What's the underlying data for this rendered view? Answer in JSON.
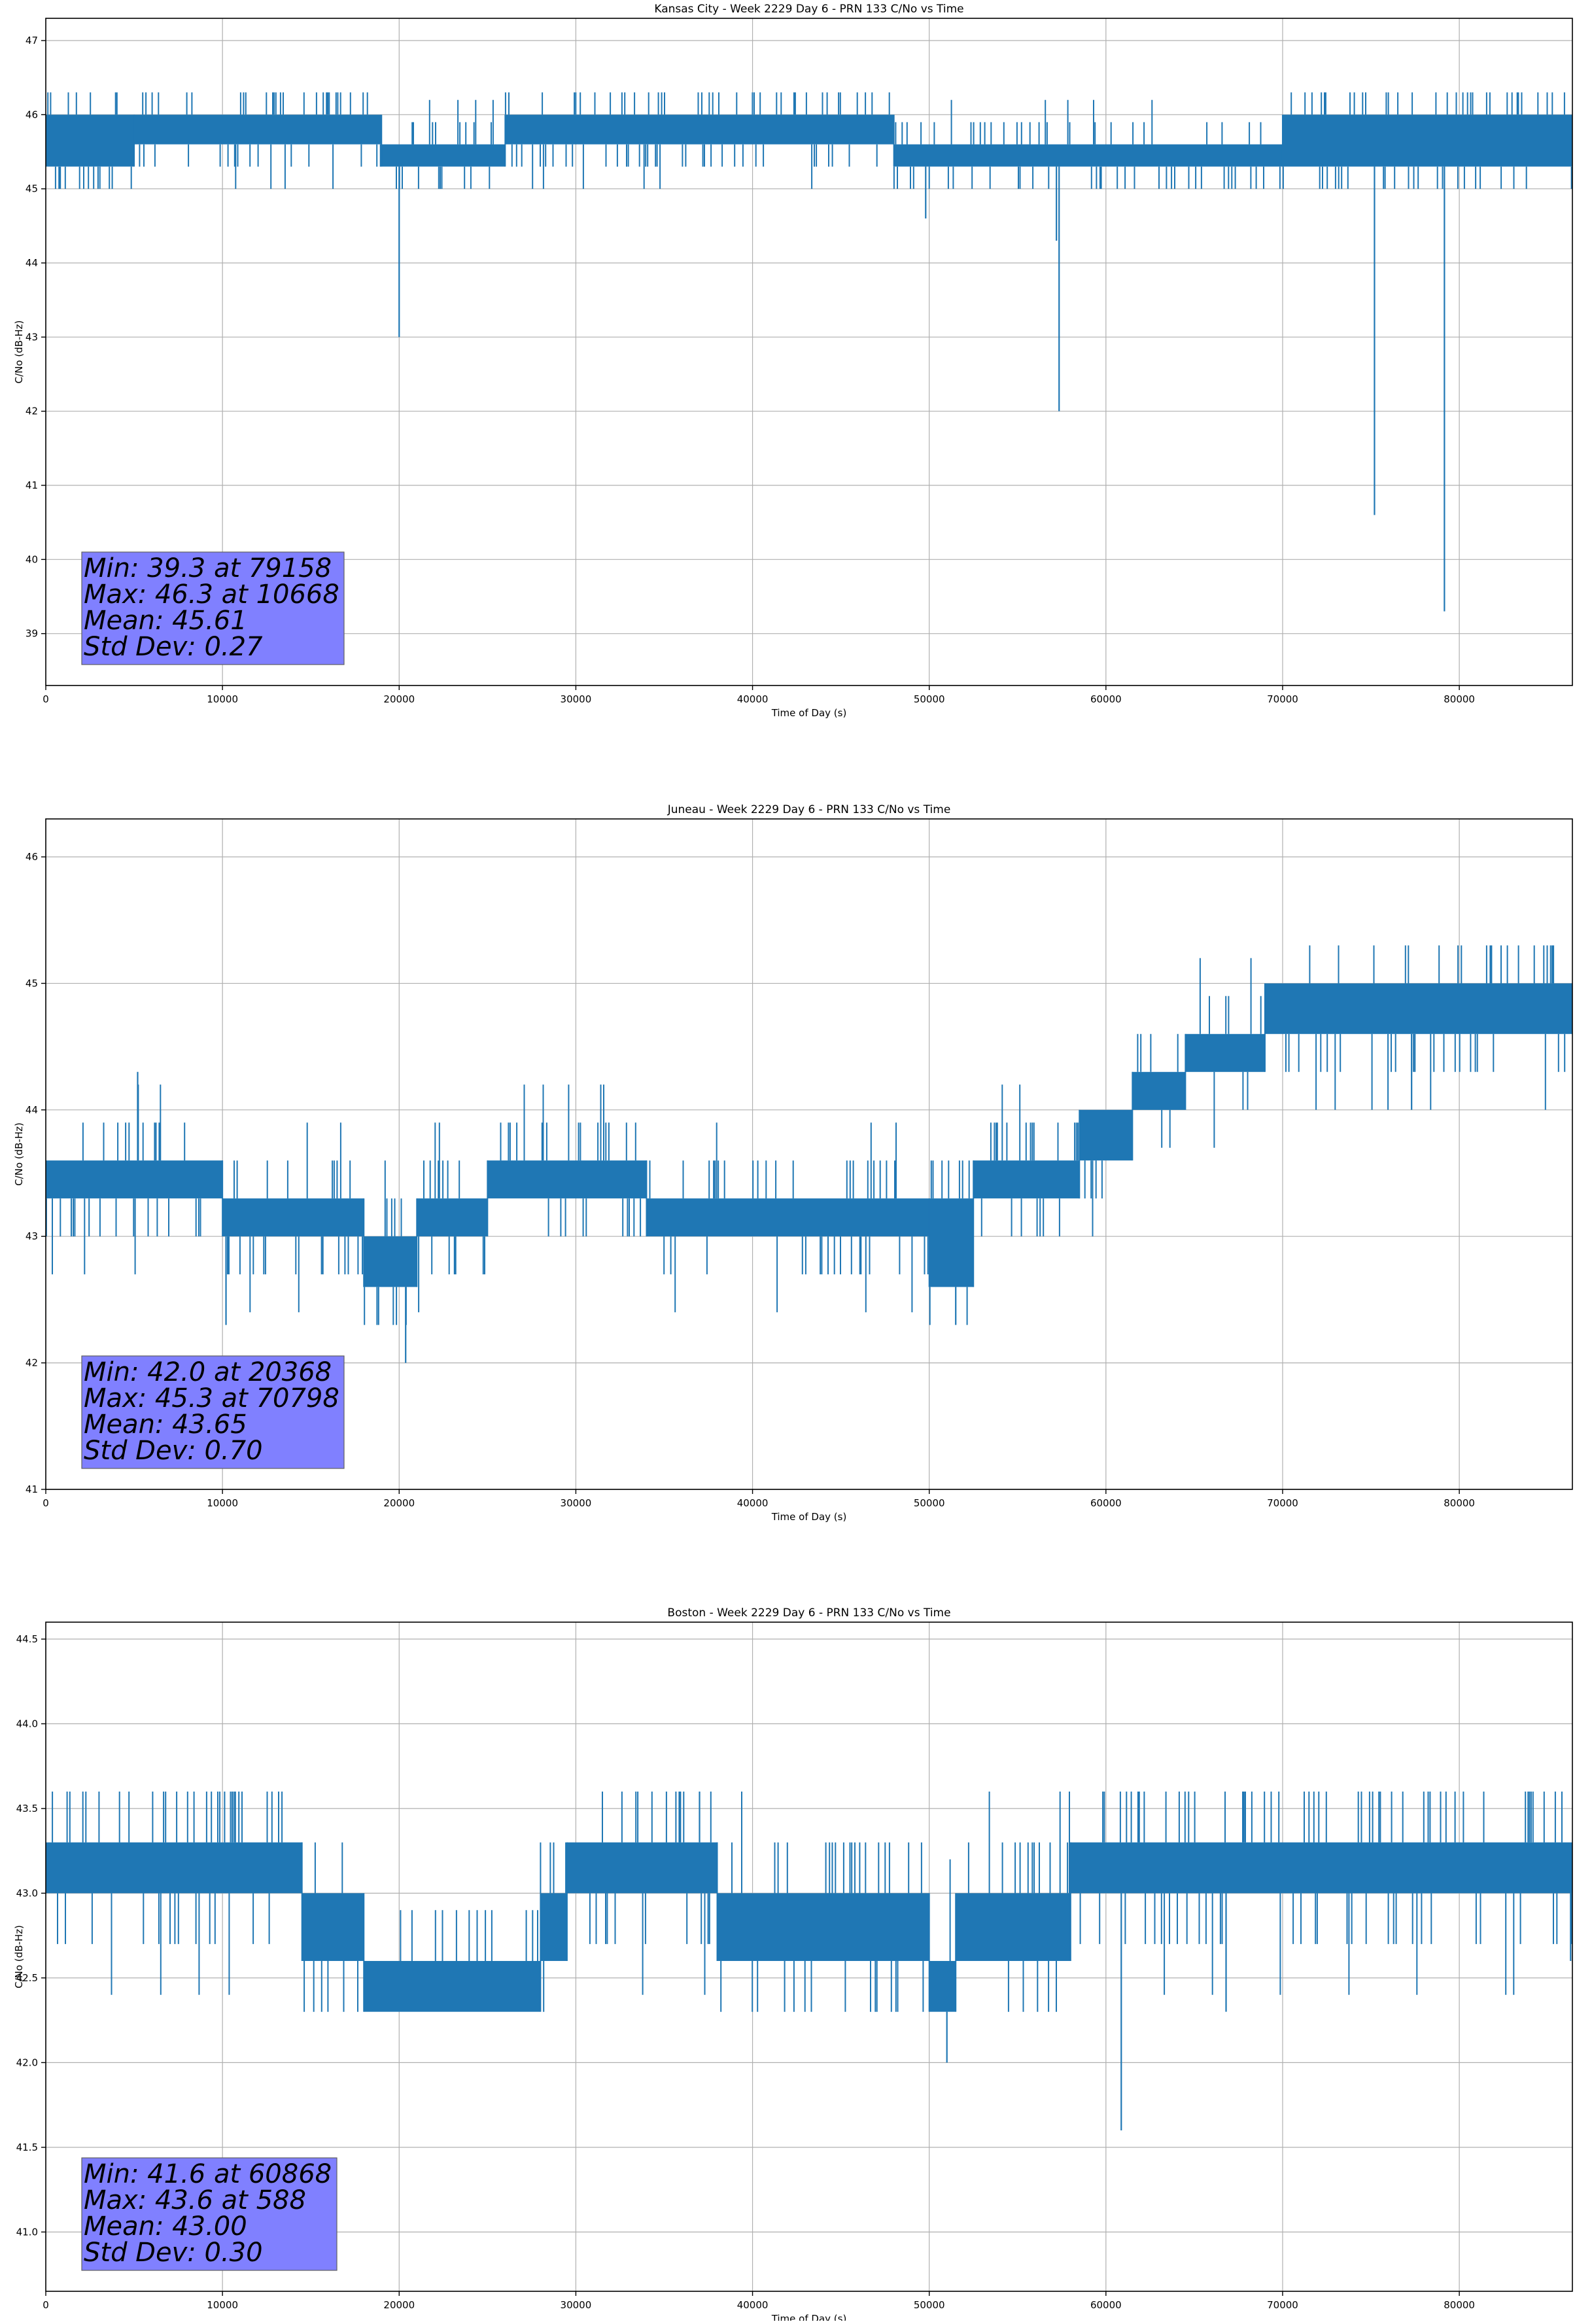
{
  "chart_data": [
    {
      "type": "line",
      "title": "Kansas City - Week 2229 Day 6 - PRN 133 C/No vs Time",
      "xlabel": "Time of Day (s)",
      "ylabel": "C/No (dB-Hz)",
      "xlim": [
        0,
        86400
      ],
      "ylim": [
        38.3,
        47.3
      ],
      "xticks": [
        0,
        10000,
        20000,
        30000,
        40000,
        50000,
        60000,
        70000,
        80000
      ],
      "yticks": [
        39,
        40,
        41,
        42,
        43,
        44,
        45,
        46,
        47
      ],
      "ytick_decimals": 0,
      "grid": true,
      "line_color": "#1f77b4",
      "stats": [
        "Min: 39.3 at 79158",
        "Max: 46.3 at 10668",
        "Mean: 45.61",
        "Std Dev: 0.27"
      ],
      "stats_box_color": "#8080ff",
      "bands": [
        {
          "x0": 0,
          "x1": 5000,
          "lo": 45.3,
          "hi": 46.0
        },
        {
          "x0": 5000,
          "x1": 19000,
          "lo": 45.6,
          "hi": 46.0
        },
        {
          "x0": 19000,
          "x1": 26000,
          "lo": 45.3,
          "hi": 45.6
        },
        {
          "x0": 26000,
          "x1": 48000,
          "lo": 45.6,
          "hi": 46.0
        },
        {
          "x0": 48000,
          "x1": 70000,
          "lo": 45.3,
          "hi": 45.6
        },
        {
          "x0": 70000,
          "x1": 86400,
          "lo": 45.3,
          "hi": 46.0
        }
      ],
      "noise_range": [
        45.0,
        46.3
      ],
      "spikes": [
        {
          "x": 20000,
          "y": 43.0
        },
        {
          "x": 49800,
          "y": 44.6
        },
        {
          "x": 57200,
          "y": 44.3
        },
        {
          "x": 57350,
          "y": 42.0
        },
        {
          "x": 75200,
          "y": 40.6
        },
        {
          "x": 79158,
          "y": 39.3
        }
      ]
    },
    {
      "type": "line",
      "title": "Juneau - Week 2229 Day 6 - PRN 133 C/No vs Time",
      "xlabel": "Time of Day (s)",
      "ylabel": "C/No (dB-Hz)",
      "xlim": [
        0,
        86400
      ],
      "ylim": [
        41.0,
        46.3
      ],
      "xticks": [
        0,
        10000,
        20000,
        30000,
        40000,
        50000,
        60000,
        70000,
        80000
      ],
      "yticks": [
        41,
        42,
        43,
        44,
        45,
        46
      ],
      "ytick_decimals": 0,
      "grid": true,
      "line_color": "#1f77b4",
      "stats": [
        "Min: 42.0 at 20368",
        "Max: 45.3 at 70798",
        "Mean: 43.65",
        "Std Dev: 0.70"
      ],
      "stats_box_color": "#8080ff",
      "bands": [
        {
          "x0": 0,
          "x1": 10000,
          "lo": 43.3,
          "hi": 43.6
        },
        {
          "x0": 10000,
          "x1": 18000,
          "lo": 43.0,
          "hi": 43.3
        },
        {
          "x0": 18000,
          "x1": 21000,
          "lo": 42.6,
          "hi": 43.0
        },
        {
          "x0": 21000,
          "x1": 25000,
          "lo": 43.0,
          "hi": 43.3
        },
        {
          "x0": 25000,
          "x1": 34000,
          "lo": 43.3,
          "hi": 43.6
        },
        {
          "x0": 34000,
          "x1": 50000,
          "lo": 43.0,
          "hi": 43.3
        },
        {
          "x0": 50000,
          "x1": 52500,
          "lo": 42.6,
          "hi": 43.3
        },
        {
          "x0": 52500,
          "x1": 58500,
          "lo": 43.3,
          "hi": 43.6
        },
        {
          "x0": 58500,
          "x1": 61500,
          "lo": 43.6,
          "hi": 44.0
        },
        {
          "x0": 61500,
          "x1": 64500,
          "lo": 44.0,
          "hi": 44.3
        },
        {
          "x0": 64500,
          "x1": 69000,
          "lo": 44.3,
          "hi": 44.6
        },
        {
          "x0": 69000,
          "x1": 86400,
          "lo": 44.6,
          "hi": 45.0
        }
      ],
      "noise_range": [
        42.3,
        45.3
      ],
      "spikes": [
        {
          "x": 5200,
          "y": 44.3
        },
        {
          "x": 10200,
          "y": 42.3
        },
        {
          "x": 20368,
          "y": 42.0
        },
        {
          "x": 51500,
          "y": 42.3
        },
        {
          "x": 77300,
          "y": 44.0
        }
      ]
    },
    {
      "type": "line",
      "title": "Boston - Week 2229 Day 6 - PRN 133 C/No vs Time",
      "xlabel": "Time of Day (s)",
      "ylabel": "C/No (dB-Hz)",
      "xlim": [
        0,
        86400
      ],
      "ylim": [
        40.65,
        44.6
      ],
      "xticks": [
        0,
        10000,
        20000,
        30000,
        40000,
        50000,
        60000,
        70000,
        80000
      ],
      "yticks": [
        41.0,
        41.5,
        42.0,
        42.5,
        43.0,
        43.5,
        44.0,
        44.5
      ],
      "ytick_decimals": 1,
      "grid": true,
      "line_color": "#1f77b4",
      "stats": [
        "Min: 41.6 at 60868",
        "Max: 43.6 at 588",
        "Mean: 43.00",
        "Std Dev: 0.30"
      ],
      "stats_box_color": "#8080ff",
      "bands": [
        {
          "x0": 0,
          "x1": 14500,
          "lo": 43.0,
          "hi": 43.3
        },
        {
          "x0": 14500,
          "x1": 18000,
          "lo": 42.6,
          "hi": 43.0
        },
        {
          "x0": 18000,
          "x1": 28000,
          "lo": 42.3,
          "hi": 42.6
        },
        {
          "x0": 28000,
          "x1": 29500,
          "lo": 42.6,
          "hi": 43.0
        },
        {
          "x0": 29500,
          "x1": 38000,
          "lo": 43.0,
          "hi": 43.3
        },
        {
          "x0": 38000,
          "x1": 50000,
          "lo": 42.6,
          "hi": 43.0
        },
        {
          "x0": 50000,
          "x1": 51500,
          "lo": 42.3,
          "hi": 42.6
        },
        {
          "x0": 51500,
          "x1": 58000,
          "lo": 42.6,
          "hi": 43.0
        },
        {
          "x0": 58000,
          "x1": 86400,
          "lo": 43.0,
          "hi": 43.3
        }
      ],
      "noise_range": [
        42.3,
        43.6
      ],
      "spikes": [
        {
          "x": 37000,
          "y": 43.6
        },
        {
          "x": 51000,
          "y": 42.0
        },
        {
          "x": 60868,
          "y": 41.6
        },
        {
          "x": 66800,
          "y": 42.3
        },
        {
          "x": 86300,
          "y": 42.6
        }
      ]
    }
  ]
}
